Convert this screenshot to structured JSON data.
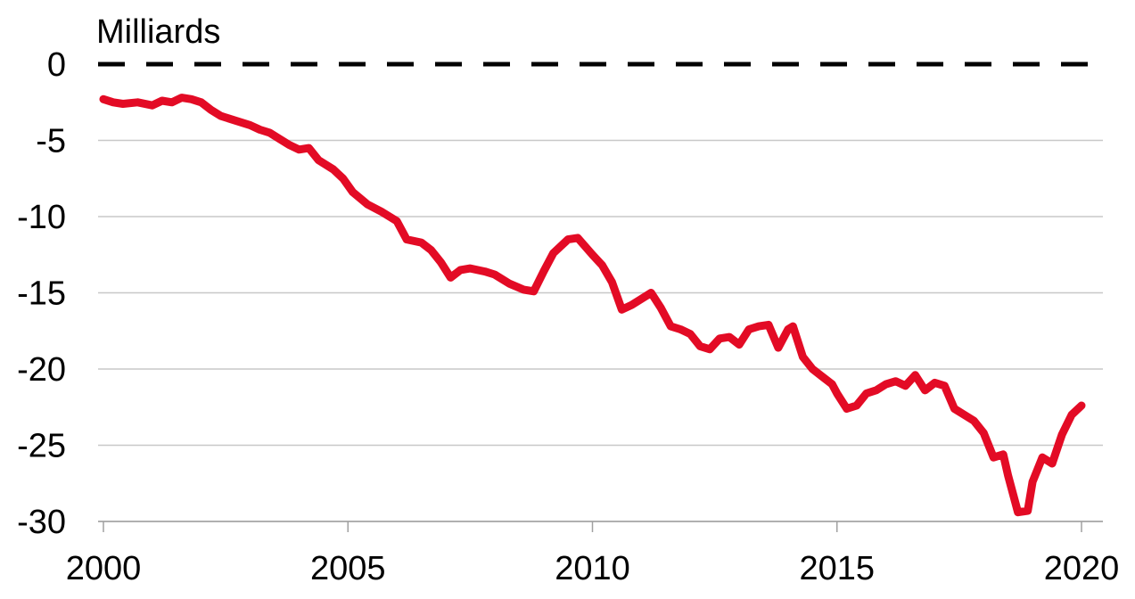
{
  "chart_data": {
    "type": "line",
    "unit_label": "Milliards",
    "xlim": [
      2000,
      2020
    ],
    "ylim": [
      -30,
      0
    ],
    "x_ticks": [
      2000,
      2005,
      2010,
      2015,
      2020
    ],
    "y_ticks": [
      0,
      -5,
      -10,
      -15,
      -20,
      -25,
      -30
    ],
    "x_tick_labels": [
      "2000",
      "2005",
      "2010",
      "2015",
      "2020"
    ],
    "y_tick_labels": [
      "0",
      "-5",
      "-10",
      "-15",
      "-20",
      "-25",
      "-30"
    ],
    "grid": "horizontal",
    "zero_line": "dashed",
    "colors": {
      "series": "#e30b25",
      "grid": "#c8c8c8",
      "zero_line": "#000000"
    },
    "series": [
      {
        "x": [
          2000.0,
          2000.2,
          2000.4,
          2000.7,
          2001.0,
          2001.2,
          2001.4,
          2001.6,
          2001.8,
          2002.0,
          2002.2,
          2002.4,
          2002.7,
          2003.0,
          2003.2,
          2003.4,
          2003.6,
          2003.8,
          2004.0,
          2004.2,
          2004.4,
          2004.7,
          2004.9,
          2005.1,
          2005.4,
          2005.7,
          2006.0,
          2006.2,
          2006.5,
          2006.7,
          2006.9,
          2007.1,
          2007.3,
          2007.5,
          2007.8,
          2008.0,
          2008.3,
          2008.6,
          2008.8,
          2009.0,
          2009.2,
          2009.5,
          2009.7,
          2010.0,
          2010.2,
          2010.4,
          2010.6,
          2010.8,
          2011.0,
          2011.2,
          2011.4,
          2011.6,
          2011.8,
          2012.0,
          2012.2,
          2012.4,
          2012.6,
          2012.8,
          2013.0,
          2013.2,
          2013.4,
          2013.6,
          2013.8,
          2014.0,
          2014.1,
          2014.3,
          2014.5,
          2014.7,
          2014.9,
          2015.0,
          2015.2,
          2015.4,
          2015.6,
          2015.8,
          2016.0,
          2016.2,
          2016.4,
          2016.6,
          2016.8,
          2017.0,
          2017.2,
          2017.4,
          2017.6,
          2017.8,
          2018.0,
          2018.2,
          2018.4,
          2018.5,
          2018.7,
          2018.9,
          2019.0,
          2019.2,
          2019.4,
          2019.6,
          2019.8,
          2020.0
        ],
        "y": [
          -2.3,
          -2.5,
          -2.6,
          -2.5,
          -2.7,
          -2.4,
          -2.5,
          -2.2,
          -2.3,
          -2.5,
          -3.0,
          -3.4,
          -3.7,
          -4.0,
          -4.3,
          -4.5,
          -4.9,
          -5.3,
          -5.6,
          -5.5,
          -6.3,
          -6.9,
          -7.5,
          -8.4,
          -9.2,
          -9.7,
          -10.3,
          -11.5,
          -11.7,
          -12.2,
          -13.0,
          -14.0,
          -13.5,
          -13.4,
          -13.6,
          -13.8,
          -14.4,
          -14.8,
          -14.9,
          -13.6,
          -12.4,
          -11.5,
          -11.4,
          -12.5,
          -13.2,
          -14.3,
          -16.1,
          -15.8,
          -15.4,
          -15.0,
          -16.0,
          -17.2,
          -17.4,
          -17.7,
          -18.5,
          -18.7,
          -18.0,
          -17.9,
          -18.4,
          -17.4,
          -17.2,
          -17.1,
          -18.6,
          -17.4,
          -17.2,
          -19.2,
          -20.0,
          -20.5,
          -21.0,
          -21.6,
          -22.6,
          -22.4,
          -21.6,
          -21.4,
          -21.0,
          -20.8,
          -21.1,
          -20.4,
          -21.4,
          -20.9,
          -21.1,
          -22.6,
          -23.0,
          -23.4,
          -24.2,
          -25.8,
          -25.6,
          -27.0,
          -29.4,
          -29.3,
          -27.4,
          -25.8,
          -26.2,
          -24.3,
          -23.0,
          -22.4
        ]
      }
    ]
  }
}
